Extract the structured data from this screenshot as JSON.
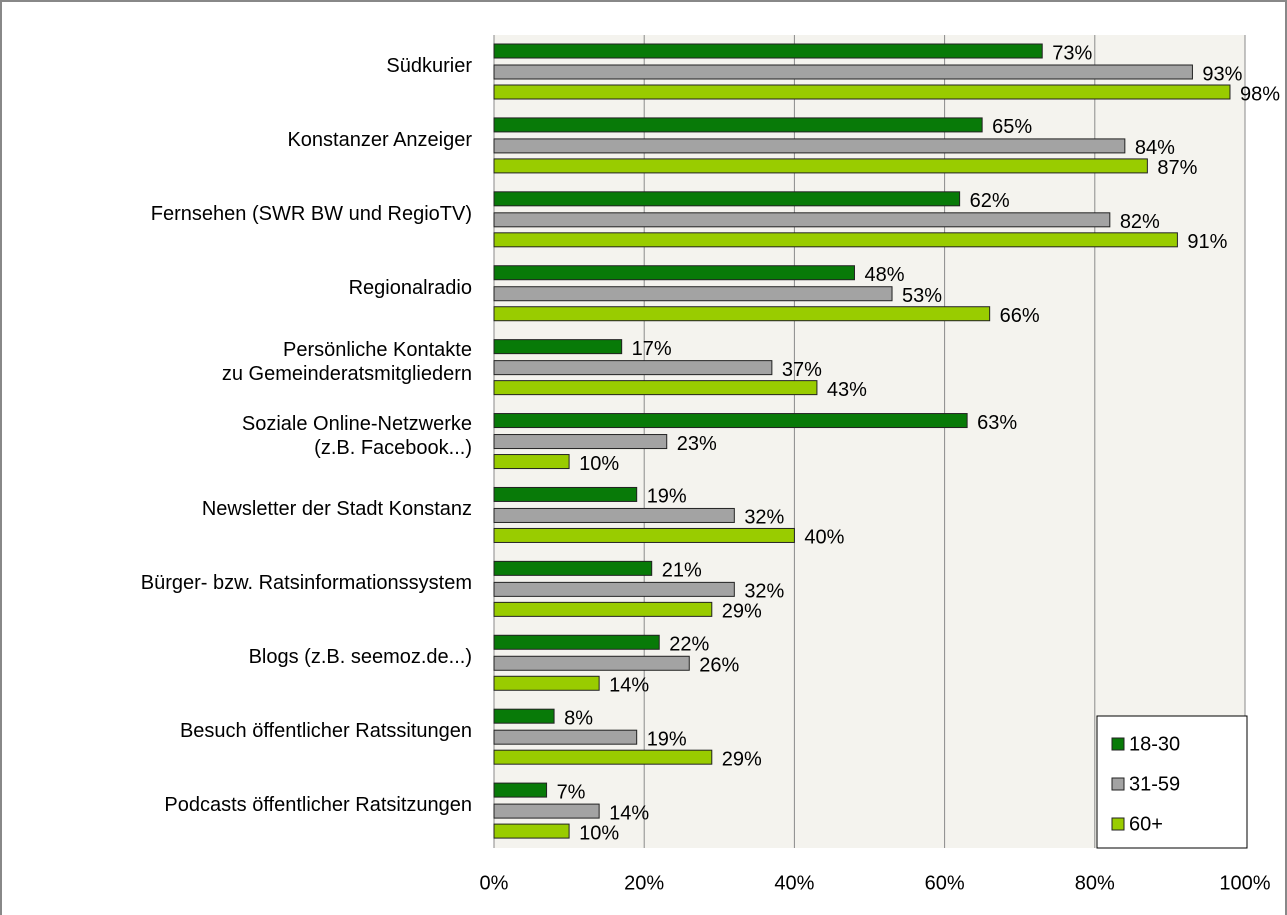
{
  "chart_data": {
    "type": "bar",
    "orientation": "horizontal",
    "categories": [
      "Südkurier",
      "Konstanzer Anzeiger",
      "Fernsehen (SWR BW und RegioTV)",
      "Regionalradio",
      "Persönliche Kontakte\nzu Gemeinderatsmitgliedern",
      "Soziale Online-Netzwerke\n(z.B. Facebook...)",
      "Newsletter der Stadt Konstanz",
      "Bürger- bzw. Ratsinformationssystem",
      "Blogs (z.B. seemoz.de...)",
      "Besuch öffentlicher Ratssitungen",
      "Podcasts öffentlicher Ratsitzungen"
    ],
    "series": [
      {
        "name": "18-30",
        "color": "#087a08",
        "values": [
          73,
          65,
          62,
          48,
          17,
          63,
          19,
          21,
          22,
          8,
          7
        ],
        "value_labels": [
          "73%",
          "65%",
          "62%",
          "48%",
          "17%",
          "63%",
          "19%",
          "21%",
          "22%",
          "8%",
          "7%"
        ]
      },
      {
        "name": "31-59",
        "color": "#a3a3a3",
        "values": [
          93,
          84,
          82,
          53,
          37,
          23,
          32,
          32,
          26,
          19,
          14
        ],
        "value_labels": [
          "93%",
          "84%",
          "82%",
          "53%",
          "37%",
          "23%",
          "32%",
          "32%",
          "26%",
          "19%",
          "14%"
        ]
      },
      {
        "name": "60+",
        "color": "#99cc00",
        "values": [
          98,
          87,
          91,
          66,
          43,
          10,
          40,
          29,
          14,
          29,
          10
        ],
        "value_labels": [
          "98%",
          "87%",
          "91%",
          "66%",
          "43%",
          "10%",
          "40%",
          "29%",
          "14%",
          "29%",
          "10%"
        ]
      }
    ],
    "xlim": [
      0,
      100
    ],
    "xticks": [
      {
        "value": 0,
        "label": "0%"
      },
      {
        "value": 20,
        "label": "20%"
      },
      {
        "value": 40,
        "label": "40%"
      },
      {
        "value": 60,
        "label": "60%"
      },
      {
        "value": 80,
        "label": "80%"
      },
      {
        "value": 100,
        "label": "100%"
      }
    ],
    "grid": true,
    "legend": "lower right"
  }
}
